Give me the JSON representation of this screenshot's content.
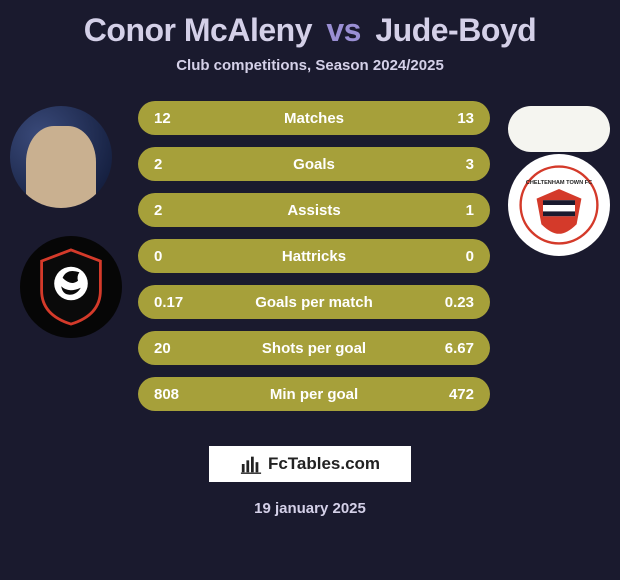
{
  "title": {
    "player1": "Conor McAleny",
    "vs": "vs",
    "player2": "Jude-Boyd",
    "player1_color": "#d4d0e8",
    "vs_color": "#9a8fd4",
    "player2_color": "#d4d0e8"
  },
  "subtitle": "Club competitions, Season 2024/2025",
  "background_color": "#1a1a2e",
  "text_color": "#ffffff",
  "muted_text_color": "#d4d0e8",
  "avatars": {
    "player1_bg": "#1a2a5a",
    "club1_bg": "#060606",
    "club1_accent": "#d43a2a",
    "player2_bg": "#f5f5f0",
    "club2_bg": "#ffffff",
    "club2_accent": "#d43a2a",
    "club2_label": "CHELTENHAM TOWN FC"
  },
  "row_style": {
    "height": 34,
    "radius": 17,
    "gap": 12,
    "font_size": 15,
    "font_weight": 700
  },
  "stats": [
    {
      "label": "Matches",
      "p1": "12",
      "p2": "13",
      "bg": "#a6a03a"
    },
    {
      "label": "Goals",
      "p1": "2",
      "p2": "3",
      "bg": "#a6a03a"
    },
    {
      "label": "Assists",
      "p1": "2",
      "p2": "1",
      "bg": "#a6a03a"
    },
    {
      "label": "Hattricks",
      "p1": "0",
      "p2": "0",
      "bg": "#a6a03a"
    },
    {
      "label": "Goals per match",
      "p1": "0.17",
      "p2": "0.23",
      "bg": "#a6a03a"
    },
    {
      "label": "Shots per goal",
      "p1": "20",
      "p2": "6.67",
      "bg": "#a6a03a"
    },
    {
      "label": "Min per goal",
      "p1": "808",
      "p2": "472",
      "bg": "#a6a03a"
    }
  ],
  "footer": {
    "site": "FcTables.com",
    "date": "19 january 2025",
    "badge_bg": "#ffffff",
    "badge_text_color": "#222222"
  }
}
